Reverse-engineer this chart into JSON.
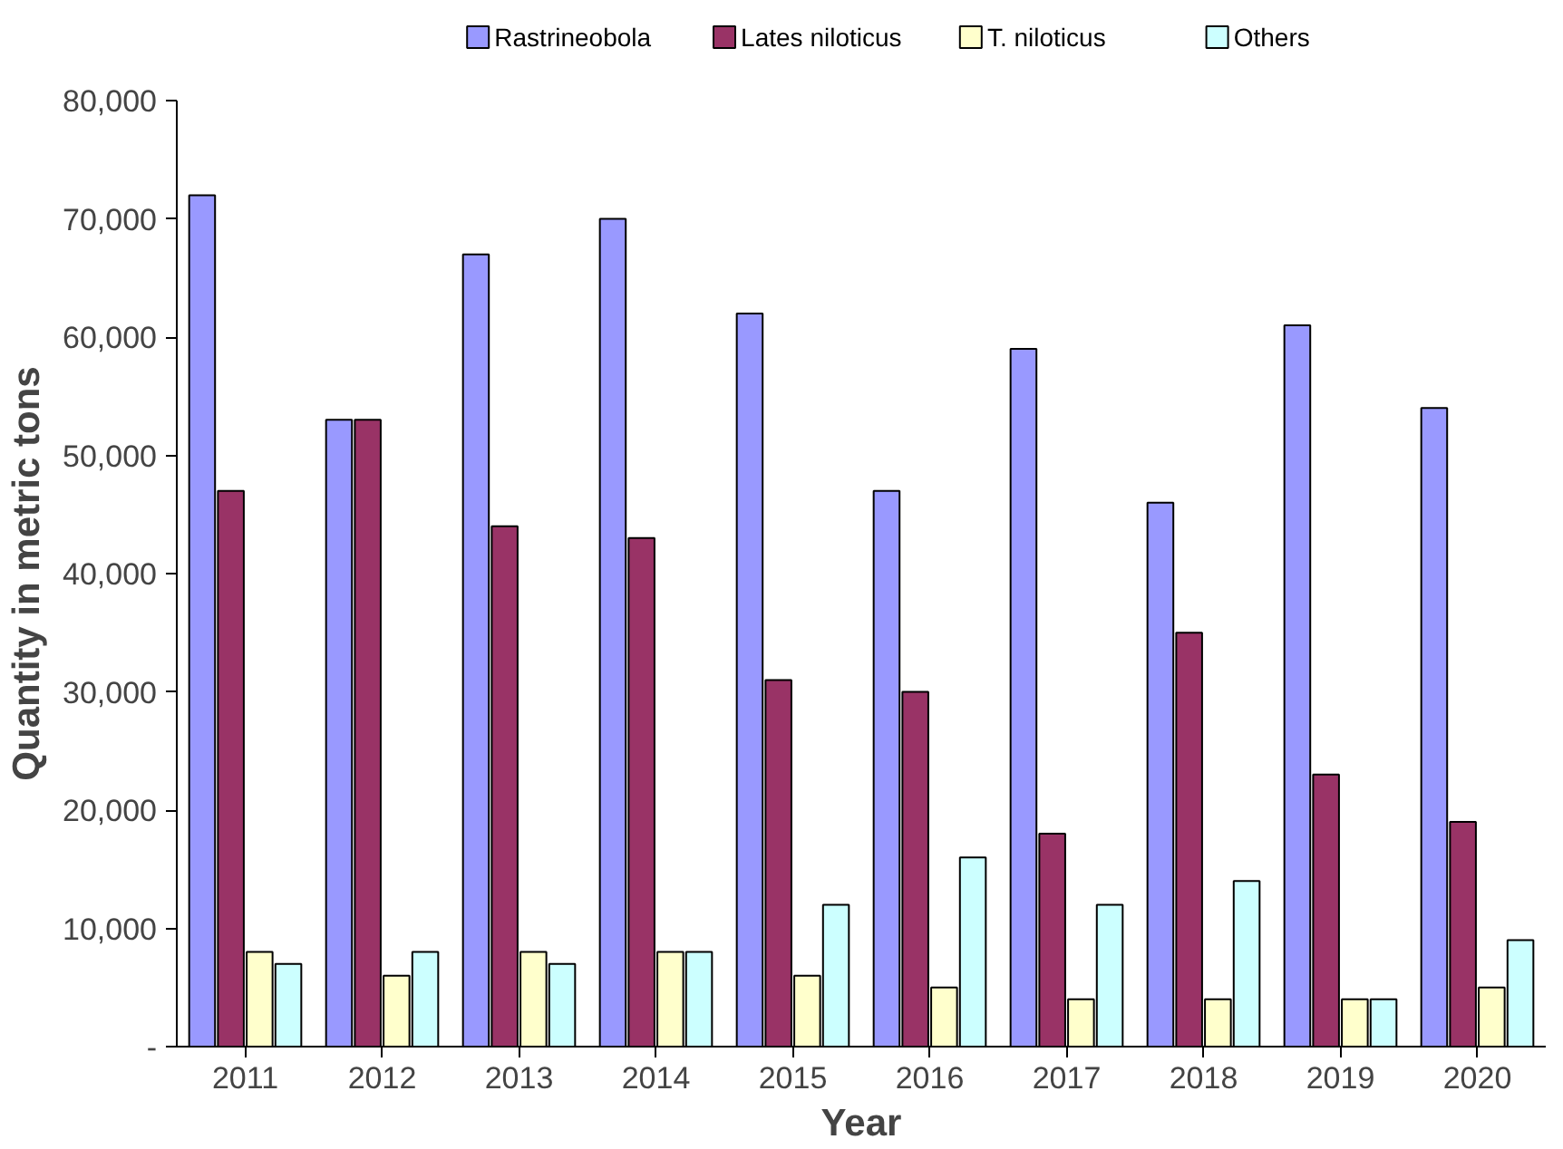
{
  "chart_data": {
    "type": "bar",
    "xlabel": "Year",
    "ylabel": "Quantity in metric tons",
    "categories": [
      "2011",
      "2012",
      "2013",
      "2014",
      "2015",
      "2016",
      "2017",
      "2018",
      "2019",
      "2020"
    ],
    "series": [
      {
        "name": "Rastrineobola",
        "color": "#9999ff",
        "values": [
          72000,
          53000,
          67000,
          70000,
          62000,
          47000,
          59000,
          46000,
          61000,
          54000
        ]
      },
      {
        "name": "Lates niloticus",
        "color": "#993366",
        "values": [
          47000,
          53000,
          44000,
          43000,
          31000,
          30000,
          18000,
          35000,
          23000,
          19000
        ]
      },
      {
        "name": "T. niloticus",
        "color": "#ffffcc",
        "values": [
          8000,
          6000,
          8000,
          8000,
          6000,
          5000,
          4000,
          4000,
          4000,
          5000
        ]
      },
      {
        "name": "Others",
        "color": "#ccffff",
        "values": [
          7000,
          8000,
          7000,
          8000,
          12000,
          16000,
          12000,
          14000,
          4000,
          9000
        ]
      }
    ],
    "ylim": [
      0,
      80000
    ],
    "yticks": [
      {
        "value": 0,
        "label": "-"
      },
      {
        "value": 10000,
        "label": "10,000"
      },
      {
        "value": 20000,
        "label": "20,000"
      },
      {
        "value": 30000,
        "label": "30,000"
      },
      {
        "value": 40000,
        "label": "40,000"
      },
      {
        "value": 50000,
        "label": "50,000"
      },
      {
        "value": 60000,
        "label": "60,000"
      },
      {
        "value": 70000,
        "label": "70,000"
      },
      {
        "value": 80000,
        "label": "80,000"
      }
    ],
    "grid": false,
    "legend": "top"
  }
}
